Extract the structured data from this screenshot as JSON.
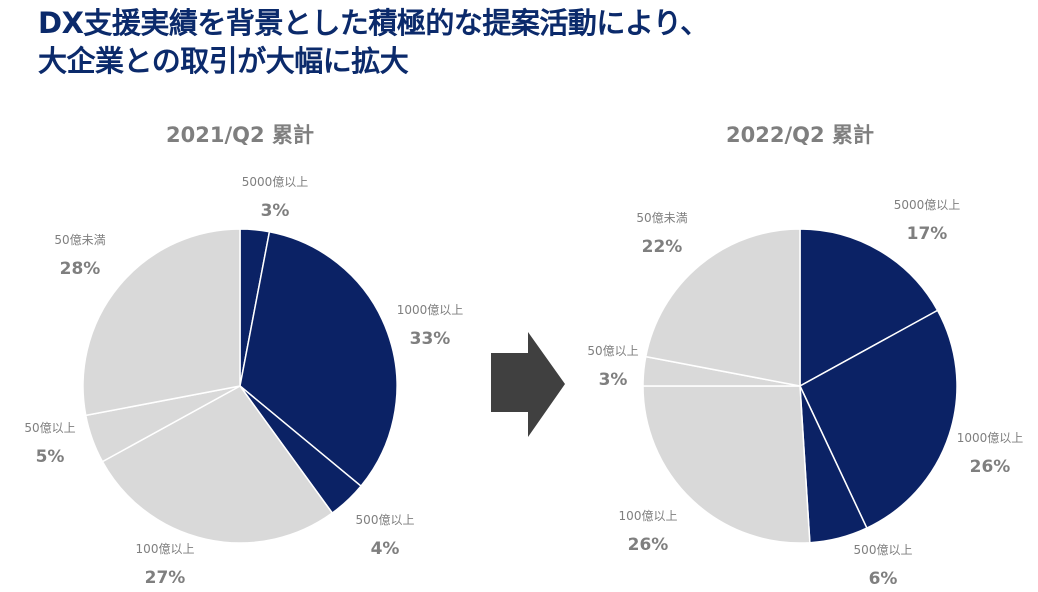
{
  "headline": {
    "line1": "DX支援実績を背景とした積極的な提案活動により、",
    "line2": "大企業との取引が大幅に拡大"
  },
  "colors": {
    "dark": "#0b2265",
    "light": "#d9d9d9",
    "arrow": "#404040",
    "label": "#7f7f7f",
    "headline": "#0b2a6b"
  },
  "transition_icon": "right-arrow-icon",
  "chart_data": [
    {
      "type": "pie",
      "title": "2021/Q2 累計",
      "slices": [
        {
          "label": "5000億以上",
          "value": 3,
          "display": "3%",
          "tone": "dark"
        },
        {
          "label": "1000億以上",
          "value": 33,
          "display": "33%",
          "tone": "dark"
        },
        {
          "label": "500億以上",
          "value": 4,
          "display": "4%",
          "tone": "dark"
        },
        {
          "label": "100億以上",
          "value": 27,
          "display": "27%",
          "tone": "light"
        },
        {
          "label": "50億以上",
          "value": 5,
          "display": "5%",
          "tone": "light"
        },
        {
          "label": "50億未満",
          "value": 28,
          "display": "28%",
          "tone": "light"
        }
      ]
    },
    {
      "type": "pie",
      "title": "2022/Q2 累計",
      "slices": [
        {
          "label": "5000億以上",
          "value": 17,
          "display": "17%",
          "tone": "dark"
        },
        {
          "label": "1000億以上",
          "value": 26,
          "display": "26%",
          "tone": "dark"
        },
        {
          "label": "500億以上",
          "value": 6,
          "display": "6%",
          "tone": "dark"
        },
        {
          "label": "100億以上",
          "value": 26,
          "display": "26%",
          "tone": "light"
        },
        {
          "label": "50億以上",
          "value": 3,
          "display": "3%",
          "tone": "light"
        },
        {
          "label": "50億未満",
          "value": 22,
          "display": "22%",
          "tone": "light"
        }
      ]
    }
  ]
}
